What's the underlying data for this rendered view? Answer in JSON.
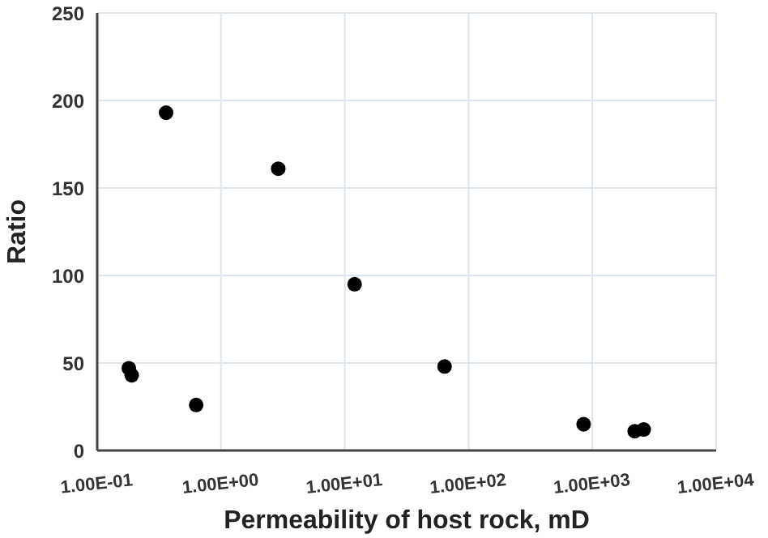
{
  "chart_data": {
    "type": "scatter",
    "xlabel": "Permeability of host rock, mD",
    "ylabel": "Ratio",
    "log": "x",
    "xlim": [
      0.1,
      10000
    ],
    "xticks": [
      {
        "value": 0.1,
        "label": "1.00E-01"
      },
      {
        "value": 1,
        "label": "1.00E+00"
      },
      {
        "value": 10,
        "label": "1.00E+01"
      },
      {
        "value": 100,
        "label": "1.00E+02"
      },
      {
        "value": 1000,
        "label": "1.00E+03"
      },
      {
        "value": 10000,
        "label": "1.00E+04"
      }
    ],
    "ylim": [
      0,
      250
    ],
    "yticks": [
      0,
      50,
      100,
      150,
      200,
      250
    ],
    "grid": true,
    "marker": "circle",
    "x": [
      0.18,
      0.19,
      0.63,
      0.36,
      2.9,
      12,
      64,
      850,
      2200,
      2600
    ],
    "series": [
      {
        "color": "#000000",
        "values": [
          47,
          43,
          26,
          193,
          161,
          95,
          48,
          15,
          11,
          12
        ]
      }
    ]
  }
}
